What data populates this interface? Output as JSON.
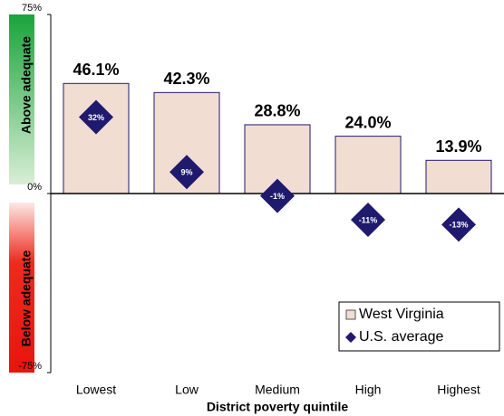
{
  "chart_data": {
    "type": "bar",
    "x_label": "District poverty quintile",
    "annotations": [
      "Above adequate",
      "Below adequate"
    ],
    "categories": [
      "Lowest",
      "Low",
      "Medium",
      "High",
      "Highest"
    ],
    "series": [
      {
        "name": "West Virginia",
        "type": "bar",
        "color": "#f2ddd3",
        "values": [
          46.1,
          42.3,
          28.8,
          24.0,
          13.9
        ],
        "value_labels": [
          "46.1%",
          "42.3%",
          "28.8%",
          "24.0%",
          "13.9%"
        ]
      },
      {
        "name": "U.S. average",
        "type": "diamond",
        "color": "#1f1a6e",
        "values": [
          32,
          9,
          -1,
          -11,
          -13
        ],
        "value_labels": [
          "32%",
          "9%",
          "-1%",
          "-11%",
          "-13%"
        ]
      }
    ],
    "ylim": [
      -75,
      75
    ],
    "yticks": [
      {
        "value": -75,
        "label": "-75%"
      },
      {
        "value": 0,
        "label": "0%"
      },
      {
        "value": 75,
        "label": "75%"
      }
    ],
    "legend": "lower right"
  }
}
